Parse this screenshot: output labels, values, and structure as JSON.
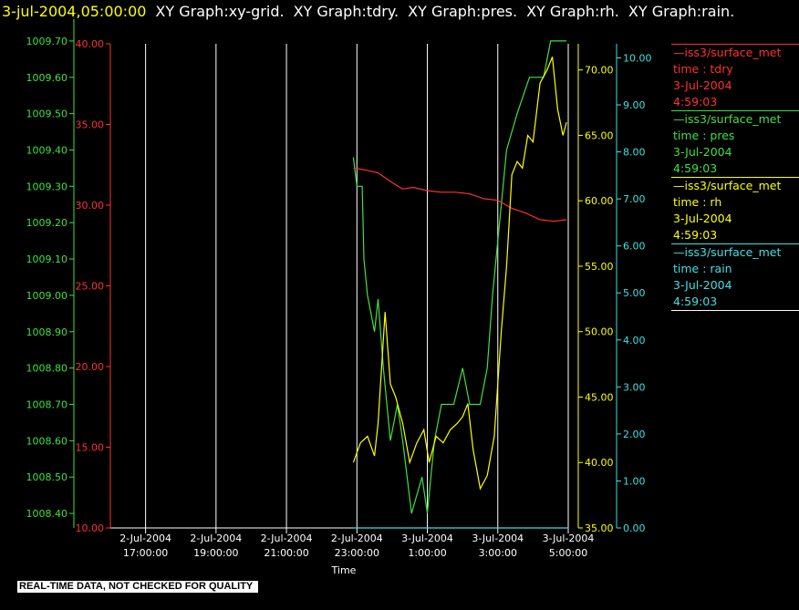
{
  "header": {
    "timestamp": "3-jul-2004,05:00:00",
    "graphs": [
      "XY Graph:xy-grid.",
      "XY Graph:tdry.",
      "XY Graph:pres.",
      "XY Graph:rh.",
      "XY Graph:rain."
    ]
  },
  "footer": {
    "quality_note": "REAL-TIME DATA, NOT CHECKED FOR QUALITY"
  },
  "colors": {
    "tdry": "#ff3030",
    "pres": "#40e040",
    "rh": "#ffff00",
    "rain": "#40e0e0",
    "grid": "#ffffff"
  },
  "legend": [
    {
      "key": "tdry",
      "source": "—iss3/surface_met",
      "var": "time : tdry",
      "date": "3-Jul-2004",
      "time": "4:59:03"
    },
    {
      "key": "pres",
      "source": "—iss3/surface_met",
      "var": "time : pres",
      "date": "3-Jul-2004",
      "time": "4:59:03"
    },
    {
      "key": "rh",
      "source": "—iss3/surface_met",
      "var": "time : rh",
      "date": "3-Jul-2004",
      "time": "4:59:03"
    },
    {
      "key": "rain",
      "source": "—iss3/surface_met",
      "var": "time : rain",
      "date": "3-Jul-2004",
      "time": "4:59:03"
    }
  ],
  "chart_data": {
    "type": "line",
    "xlabel": "Time",
    "x_range": [
      "2-Jul-2004 16:00:00",
      "3-Jul-2004 05:00:00"
    ],
    "x_ticks": [
      {
        "t": 17,
        "date": "2-Jul-2004",
        "time": "17:00:00"
      },
      {
        "t": 19,
        "date": "2-Jul-2004",
        "time": "19:00:00"
      },
      {
        "t": 21,
        "date": "2-Jul-2004",
        "time": "21:00:00"
      },
      {
        "t": 23,
        "date": "2-Jul-2004",
        "time": "23:00:00"
      },
      {
        "t": 25,
        "date": "3-Jul-2004",
        "time": "1:00:00"
      },
      {
        "t": 27,
        "date": "3-Jul-2004",
        "time": "3:00:00"
      },
      {
        "t": 29,
        "date": "3-Jul-2004",
        "time": "5:00:00"
      }
    ],
    "axes": {
      "tdry": {
        "range": [
          10,
          40
        ],
        "ticks": [
          "10.00",
          "15.00",
          "20.00",
          "25.00",
          "30.00",
          "35.00",
          "40.00"
        ]
      },
      "pres": {
        "range": [
          1008.36,
          1009.76
        ],
        "ticks": [
          "1008.40",
          "1008.50",
          "1008.60",
          "1008.70",
          "1008.80",
          "1008.90",
          "1009.00",
          "1009.10",
          "1009.20",
          "1009.30",
          "1009.40",
          "1009.50",
          "1009.60",
          "1009.70"
        ]
      },
      "rh": {
        "range": [
          35,
          72
        ],
        "ticks": [
          "35.00",
          "40.00",
          "45.00",
          "50.00",
          "55.00",
          "60.00",
          "65.00",
          "70.00"
        ]
      },
      "rain": {
        "range": [
          0,
          10.3
        ],
        "ticks": [
          "0.00",
          "1.00",
          "2.00",
          "3.00",
          "4.00",
          "5.00",
          "6.00",
          "7.00",
          "8.00",
          "9.00",
          "10.00"
        ]
      }
    },
    "series": [
      {
        "name": "tdry",
        "values": [
          [
            22.9,
            32.3
          ],
          [
            23.2,
            32.2
          ],
          [
            23.6,
            32.0
          ],
          [
            24.0,
            31.4
          ],
          [
            24.3,
            31.0
          ],
          [
            24.6,
            31.1
          ],
          [
            25.0,
            30.9
          ],
          [
            25.4,
            30.8
          ],
          [
            25.8,
            30.8
          ],
          [
            26.2,
            30.7
          ],
          [
            26.6,
            30.4
          ],
          [
            27.0,
            30.3
          ],
          [
            27.4,
            29.8
          ],
          [
            27.8,
            29.5
          ],
          [
            28.2,
            29.1
          ],
          [
            28.6,
            29.0
          ],
          [
            28.95,
            29.1
          ]
        ]
      },
      {
        "name": "pres",
        "values": [
          [
            22.9,
            1009.38
          ],
          [
            23.0,
            1009.3
          ],
          [
            23.15,
            1009.3
          ],
          [
            23.2,
            1009.1
          ],
          [
            23.3,
            1009.0
          ],
          [
            23.5,
            1008.9
          ],
          [
            23.6,
            1008.99
          ],
          [
            23.75,
            1008.8
          ],
          [
            23.95,
            1008.6
          ],
          [
            24.15,
            1008.7
          ],
          [
            24.3,
            1008.6
          ],
          [
            24.55,
            1008.4
          ],
          [
            24.85,
            1008.5
          ],
          [
            25.0,
            1008.4
          ],
          [
            25.2,
            1008.6
          ],
          [
            25.4,
            1008.7
          ],
          [
            25.75,
            1008.7
          ],
          [
            26.0,
            1008.8
          ],
          [
            26.2,
            1008.7
          ],
          [
            26.5,
            1008.7
          ],
          [
            26.7,
            1008.8
          ],
          [
            26.85,
            1009.0
          ],
          [
            27.05,
            1009.2
          ],
          [
            27.25,
            1009.4
          ],
          [
            27.55,
            1009.5
          ],
          [
            27.9,
            1009.6
          ],
          [
            28.3,
            1009.6
          ],
          [
            28.5,
            1009.7
          ],
          [
            28.95,
            1009.7
          ]
        ]
      },
      {
        "name": "rh",
        "values": [
          [
            22.9,
            40.0
          ],
          [
            23.1,
            41.5
          ],
          [
            23.3,
            42.0
          ],
          [
            23.5,
            40.5
          ],
          [
            23.6,
            43.0
          ],
          [
            23.8,
            51.5
          ],
          [
            23.95,
            46.0
          ],
          [
            24.1,
            45.0
          ],
          [
            24.3,
            43.0
          ],
          [
            24.5,
            40.0
          ],
          [
            24.7,
            41.5
          ],
          [
            24.9,
            42.5
          ],
          [
            25.05,
            40.0
          ],
          [
            25.25,
            42.0
          ],
          [
            25.45,
            41.5
          ],
          [
            25.65,
            42.5
          ],
          [
            25.85,
            43.0
          ],
          [
            26.0,
            43.5
          ],
          [
            26.15,
            44.5
          ],
          [
            26.3,
            41.0
          ],
          [
            26.5,
            38.0
          ],
          [
            26.7,
            39.0
          ],
          [
            26.9,
            42.0
          ],
          [
            27.1,
            50.0
          ],
          [
            27.25,
            55.0
          ],
          [
            27.4,
            62.0
          ],
          [
            27.55,
            63.0
          ],
          [
            27.7,
            62.5
          ],
          [
            27.85,
            65.0
          ],
          [
            28.0,
            64.5
          ],
          [
            28.2,
            69.0
          ],
          [
            28.4,
            70.0
          ],
          [
            28.55,
            71.0
          ],
          [
            28.7,
            67.0
          ],
          [
            28.85,
            65.0
          ],
          [
            28.95,
            66.0
          ]
        ]
      },
      {
        "name": "rain",
        "values": [
          [
            22.9,
            0.0
          ],
          [
            29.0,
            0.0
          ]
        ]
      }
    ]
  }
}
